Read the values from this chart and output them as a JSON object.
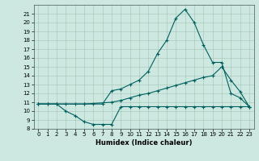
{
  "xlabel": "Humidex (Indice chaleur)",
  "line_color": "#005f5f",
  "bg_color": "#cce8e0",
  "xlim": [
    -0.5,
    23.5
  ],
  "ylim": [
    8,
    22
  ],
  "xticks": [
    0,
    1,
    2,
    3,
    4,
    5,
    6,
    7,
    8,
    9,
    10,
    11,
    12,
    13,
    14,
    15,
    16,
    17,
    18,
    19,
    20,
    21,
    22,
    23
  ],
  "yticks": [
    8,
    9,
    10,
    11,
    12,
    13,
    14,
    15,
    16,
    17,
    18,
    19,
    20,
    21
  ],
  "curve1_x": [
    0,
    1,
    2,
    3,
    4,
    5,
    6,
    7,
    8,
    9,
    10,
    11,
    12,
    13,
    14,
    15,
    16,
    17,
    18,
    19,
    20,
    21,
    22,
    23
  ],
  "curve1_y": [
    10.8,
    10.8,
    10.8,
    10.8,
    10.8,
    10.8,
    10.8,
    10.8,
    12.3,
    12.5,
    13.0,
    13.5,
    14.5,
    16.5,
    18.0,
    20.5,
    21.5,
    20.0,
    17.5,
    15.5,
    15.5,
    12.0,
    11.5,
    10.5
  ],
  "curve2_x": [
    0,
    2,
    5,
    8,
    9,
    10,
    11,
    12,
    13,
    14,
    15,
    16,
    17,
    18,
    19,
    20,
    21,
    22,
    23
  ],
  "curve2_y": [
    10.8,
    10.8,
    10.8,
    11.0,
    11.2,
    11.5,
    11.8,
    12.0,
    12.3,
    12.6,
    12.9,
    13.2,
    13.5,
    13.8,
    14.0,
    15.0,
    13.5,
    12.2,
    10.5
  ],
  "curve3_x": [
    0,
    1,
    2,
    3,
    4,
    5,
    6,
    7,
    8,
    9,
    10,
    11,
    12,
    13,
    14,
    15,
    16,
    17,
    18,
    19,
    20,
    21,
    22,
    23
  ],
  "curve3_y": [
    10.8,
    10.8,
    10.8,
    10.0,
    9.5,
    8.8,
    8.5,
    8.5,
    8.5,
    10.5,
    10.5,
    10.5,
    10.5,
    10.5,
    10.5,
    10.5,
    10.5,
    10.5,
    10.5,
    10.5,
    10.5,
    10.5,
    10.5,
    10.5
  ]
}
